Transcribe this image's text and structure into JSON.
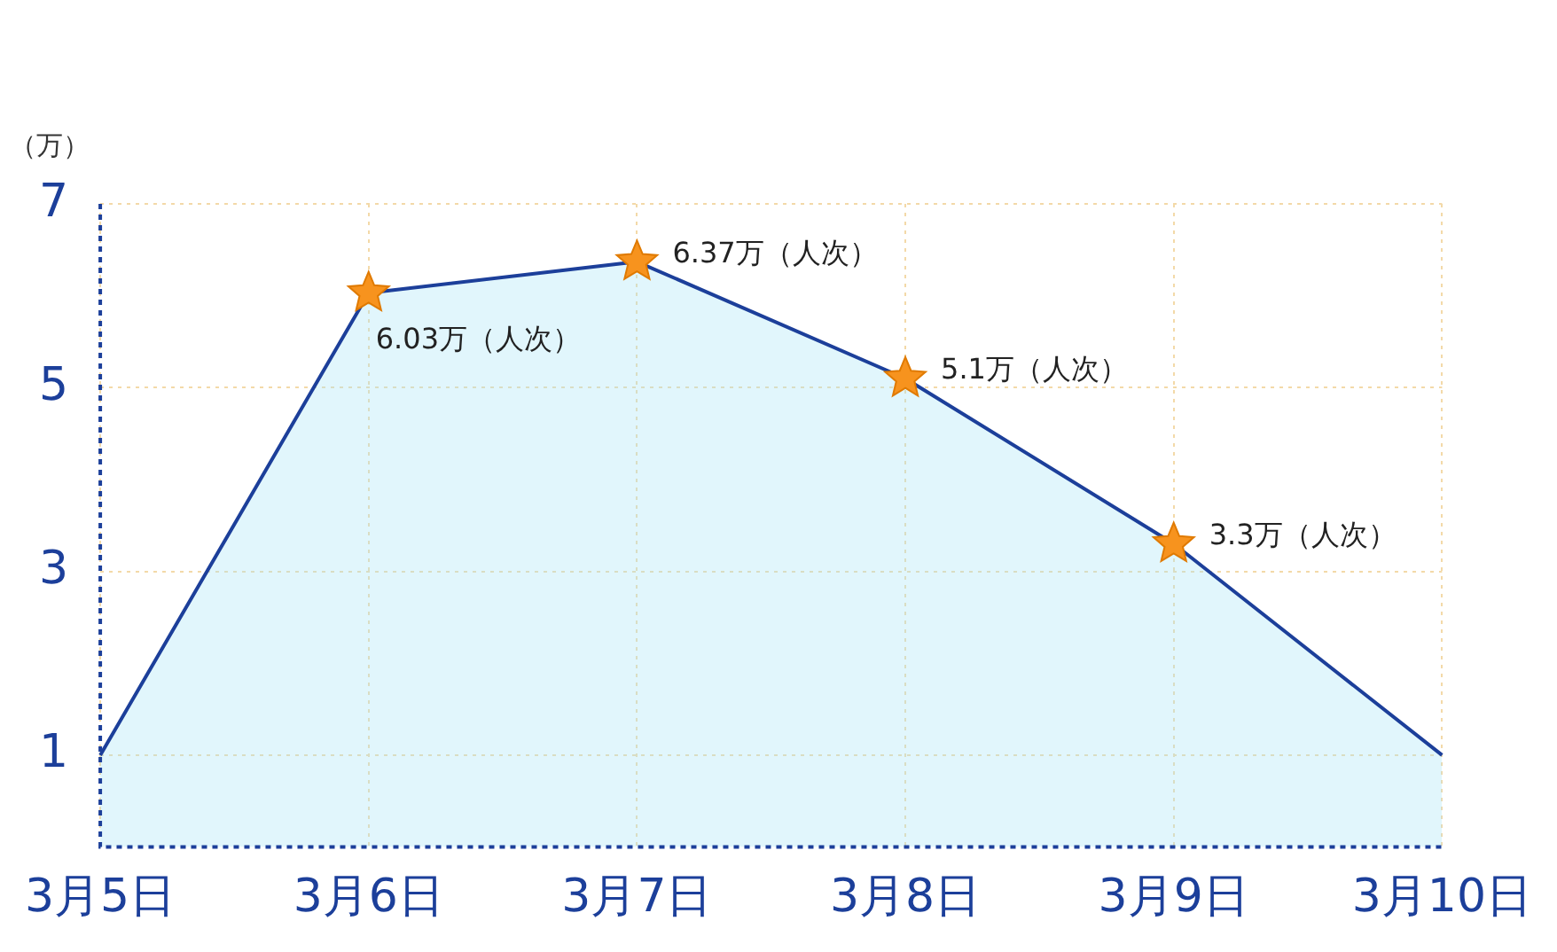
{
  "chart_data": {
    "type": "area",
    "ylabel": "（万）",
    "categories": [
      "3月5日",
      "3月6日",
      "3月7日",
      "3月8日",
      "3月9日",
      "3月10日"
    ],
    "series": [
      {
        "color": "#1c3f9a",
        "values": [
          1,
          6.03,
          6.37,
          5.1,
          3.3,
          1
        ],
        "value_labels": [
          null,
          "6.03万（人次）",
          "6.37万（人次）",
          "5.1万（人次）",
          "3.3万（人次）",
          null
        ]
      }
    ],
    "ylim": [
      0,
      7
    ],
    "yticks": [
      1,
      3,
      5,
      7
    ],
    "grid": true,
    "legend": false,
    "marker": "star",
    "line_style": "solid"
  }
}
